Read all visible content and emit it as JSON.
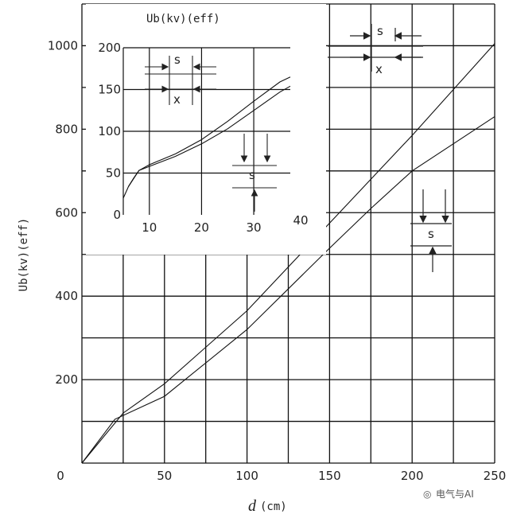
{
  "watermark": "电气与AI",
  "chart_data": [
    {
      "type": "line",
      "title": "",
      "xlabel": "d",
      "xlabel_unit": "(cm)",
      "ylabel": "Ub(kv)(eff)",
      "xlim": [
        0,
        250
      ],
      "ylim": [
        0,
        1100
      ],
      "x_ticks": [
        "0",
        "50",
        "100",
        "150",
        "200",
        "250"
      ],
      "y_ticks": [
        "200",
        "400",
        "600",
        "800",
        "1000"
      ],
      "grid": true,
      "series": [
        {
          "values": [
            [
              0,
              0
            ],
            [
              25,
              120
            ],
            [
              50,
              190
            ],
            [
              100,
              365
            ],
            [
              150,
              575
            ],
            [
              175,
              680
            ],
            [
              200,
              785
            ],
            [
              250,
              1005
            ]
          ]
        },
        {
          "values": [
            [
              0,
              0
            ],
            [
              20,
              105
            ],
            [
              50,
              160
            ],
            [
              100,
              320
            ],
            [
              150,
              515
            ],
            [
              175,
              610
            ],
            [
              200,
              700
            ],
            [
              250,
              830
            ]
          ]
        }
      ],
      "annotations": {
        "upper_config": [
          "s",
          "x"
        ],
        "lower_config": [
          "s"
        ]
      }
    },
    {
      "type": "line",
      "title": "Ub(kv)(eff)",
      "xlabel": "",
      "ylabel": "",
      "xlim": [
        5,
        37
      ],
      "ylim": [
        0,
        200
      ],
      "x_ticks": [
        "10",
        "20",
        "30",
        "40"
      ],
      "y_ticks": [
        "0",
        "50",
        "100",
        "150",
        "200"
      ],
      "grid": true,
      "series": [
        {
          "values": [
            [
              5,
              20
            ],
            [
              6,
              34
            ],
            [
              7,
              44
            ],
            [
              8,
              53
            ],
            [
              10,
              60
            ],
            [
              15,
              73
            ],
            [
              20,
              90
            ],
            [
              25,
              112
            ],
            [
              30,
              136
            ],
            [
              35,
              159
            ],
            [
              37,
              165
            ]
          ]
        },
        {
          "values": [
            [
              6,
              34
            ],
            [
              8,
              53
            ],
            [
              10,
              58
            ],
            [
              15,
              70
            ],
            [
              20,
              85
            ],
            [
              25,
              103
            ],
            [
              30,
              125
            ],
            [
              35,
              147
            ],
            [
              37,
              154
            ]
          ]
        }
      ],
      "annotations": {
        "upper_config": [
          "s",
          "x"
        ],
        "lower_config": [
          "s"
        ]
      }
    }
  ]
}
